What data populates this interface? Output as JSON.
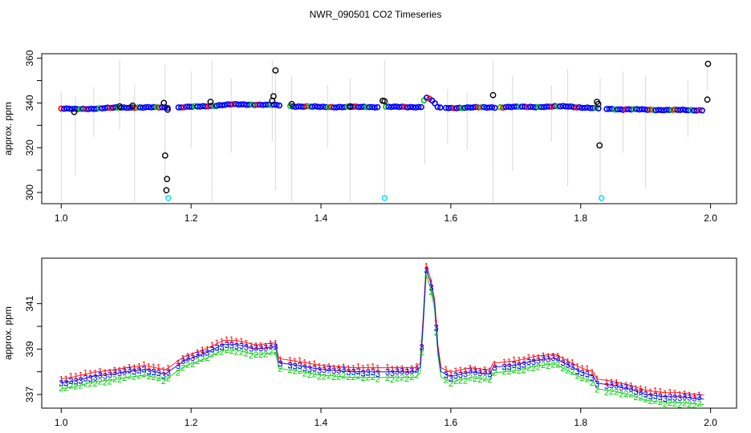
{
  "title": "NWR_090501  CO2 Timeseries",
  "colors": {
    "series_1": "#ff0000",
    "series_2": "#00cd00",
    "series_3": "#0000ff",
    "outlier": "#000000",
    "flag": "#00e5ee",
    "errorbar": "#b4b4b4"
  },
  "chart_data": [
    {
      "type": "scatter",
      "title": "NWR_090501  CO2 Timeseries",
      "ylabel": "approx. ppm",
      "xlabel": "",
      "xlim": [
        0.97,
        2.04
      ],
      "ylim": [
        295,
        362
      ],
      "xticks": [
        1.0,
        1.2,
        1.4,
        1.6,
        1.8,
        2.0
      ],
      "xtick_labels": [
        "1.0",
        "1.2",
        "1.4",
        "1.6",
        "1.8",
        "2.0"
      ],
      "yticks": [
        300,
        320,
        340,
        360
      ],
      "ytick_labels": [
        "300",
        "320",
        "340",
        "360"
      ],
      "grid": false,
      "baseline_trace": {
        "x": [
          1.0,
          1.02,
          1.05,
          1.1,
          1.15,
          1.18,
          1.22,
          1.26,
          1.3,
          1.33,
          1.36,
          1.4,
          1.45,
          1.5,
          1.555,
          1.56,
          1.57,
          1.58,
          1.6,
          1.65,
          1.7,
          1.75,
          1.78,
          1.8,
          1.83,
          1.86,
          1.9,
          1.95,
          1.99
        ],
        "y": [
          337.5,
          337.2,
          337.5,
          338.0,
          338.0,
          338.0,
          338.5,
          339.3,
          339.3,
          339.0,
          338.5,
          338.2,
          338.2,
          338.2,
          338.2,
          342.5,
          341.5,
          338.0,
          337.8,
          338.0,
          338.2,
          338.3,
          338.5,
          338.0,
          337.5,
          337.2,
          337.0,
          336.8,
          336.8
        ]
      },
      "outliers": {
        "x": [
          1.02,
          1.09,
          1.11,
          1.158,
          1.16,
          1.162,
          1.163,
          1.164,
          1.23,
          1.325,
          1.327,
          1.33,
          1.355,
          1.445,
          1.495,
          1.498,
          1.665,
          1.825,
          1.827,
          1.829,
          1.995,
          1.996
        ],
        "y": [
          336,
          338.5,
          338.8,
          340,
          316.5,
          301,
          306,
          337,
          340.5,
          341,
          343,
          354.5,
          339.5,
          338.5,
          341,
          340.8,
          343.5,
          340.5,
          339.5,
          321,
          341.5,
          357.5
        ]
      },
      "flagged": {
        "x": [
          1.165,
          1.498,
          1.832
        ],
        "y": [
          297.5,
          297.5,
          297.5
        ]
      },
      "error_bars": {
        "x": [
          1.0,
          1.022,
          1.05,
          1.09,
          1.113,
          1.16,
          1.2,
          1.232,
          1.262,
          1.325,
          1.33,
          1.355,
          1.41,
          1.445,
          1.498,
          1.56,
          1.595,
          1.625,
          1.665,
          1.695,
          1.755,
          1.78,
          1.83,
          1.865,
          1.9,
          1.965,
          1.995
        ],
        "ylow": [
          296,
          308,
          325,
          328,
          296,
          298,
          320,
          296,
          318,
          323,
          301,
          296,
          320,
          296,
          297,
          313,
          322,
          319,
          296,
          310,
          323,
          303,
          296,
          318,
          302,
          325,
          346
        ],
        "yhigh": [
          345,
          343,
          347,
          359,
          348,
          357,
          354,
          359,
          351,
          359,
          355,
          352,
          348,
          351,
          359,
          342,
          346,
          345,
          359,
          352,
          348,
          355,
          351,
          354,
          352,
          350,
          357
        ]
      }
    },
    {
      "type": "scatter",
      "title": "",
      "ylabel": "approx. ppm",
      "xlabel": "",
      "xlim": [
        0.97,
        2.04
      ],
      "ylim": [
        336.4,
        343.0
      ],
      "xticks": [
        1.0,
        1.2,
        1.4,
        1.6,
        1.8,
        2.0
      ],
      "xtick_labels": [
        "1.0",
        "1.2",
        "1.4",
        "1.6",
        "1.8",
        "2.0"
      ],
      "yticks": [
        337,
        339,
        341
      ],
      "ytick_labels": [
        "337",
        "339",
        "341"
      ],
      "grid": false,
      "series": [
        {
          "marker": "1",
          "color": "#ff0000",
          "offset": 0.18,
          "x": [
            1.0,
            1.02,
            1.05,
            1.08,
            1.1,
            1.13,
            1.16,
            1.165,
            1.19,
            1.22,
            1.25,
            1.27,
            1.3,
            1.33,
            1.335,
            1.36,
            1.4,
            1.45,
            1.48,
            1.485,
            1.51,
            1.545,
            1.553,
            1.558,
            1.562,
            1.568,
            1.575,
            1.58,
            1.585,
            1.6,
            1.63,
            1.66,
            1.665,
            1.7,
            1.73,
            1.76,
            1.8,
            1.82,
            1.825,
            1.85,
            1.88,
            1.9,
            1.93,
            1.95,
            1.99
          ],
          "y": [
            337.5,
            337.6,
            337.8,
            337.9,
            338.0,
            338.1,
            337.9,
            338.0,
            338.5,
            338.8,
            339.2,
            339.2,
            339.0,
            339.1,
            338.4,
            338.3,
            338.1,
            338.0,
            338.0,
            338.0,
            338.0,
            338.0,
            338.2,
            340.5,
            342.5,
            342.0,
            341.0,
            339.0,
            338.0,
            337.8,
            338.0,
            337.9,
            338.2,
            338.3,
            338.5,
            338.6,
            338.0,
            337.8,
            337.5,
            337.4,
            337.2,
            337.0,
            336.9,
            336.9,
            336.8
          ]
        },
        {
          "marker": "2",
          "color": "#00cd00",
          "offset": -0.25,
          "x": [
            1.0,
            1.02,
            1.05,
            1.08,
            1.1,
            1.13,
            1.16,
            1.165,
            1.19,
            1.22,
            1.25,
            1.27,
            1.3,
            1.33,
            1.335,
            1.36,
            1.4,
            1.45,
            1.48,
            1.485,
            1.51,
            1.545,
            1.553,
            1.558,
            1.562,
            1.568,
            1.575,
            1.58,
            1.585,
            1.6,
            1.63,
            1.66,
            1.665,
            1.7,
            1.73,
            1.76,
            1.8,
            1.82,
            1.825,
            1.85,
            1.88,
            1.9,
            1.93,
            1.95,
            1.99
          ],
          "y": [
            337.5,
            337.6,
            337.8,
            337.9,
            338.0,
            338.1,
            337.9,
            338.0,
            338.5,
            338.8,
            339.2,
            339.2,
            339.0,
            339.1,
            338.4,
            338.3,
            338.1,
            338.0,
            338.0,
            338.0,
            338.0,
            338.0,
            338.2,
            340.5,
            342.5,
            342.0,
            341.0,
            339.0,
            338.0,
            337.8,
            338.0,
            337.9,
            338.2,
            338.3,
            338.5,
            338.6,
            338.0,
            337.8,
            337.5,
            337.4,
            337.2,
            337.0,
            336.9,
            336.9,
            336.8
          ]
        },
        {
          "marker": "3",
          "color": "#0000ff",
          "offset": 0.0,
          "x": [
            1.0,
            1.02,
            1.05,
            1.08,
            1.1,
            1.13,
            1.16,
            1.165,
            1.19,
            1.22,
            1.25,
            1.27,
            1.3,
            1.33,
            1.335,
            1.36,
            1.4,
            1.45,
            1.48,
            1.485,
            1.51,
            1.545,
            1.553,
            1.558,
            1.562,
            1.568,
            1.575,
            1.58,
            1.585,
            1.6,
            1.63,
            1.66,
            1.665,
            1.7,
            1.73,
            1.76,
            1.8,
            1.82,
            1.825,
            1.85,
            1.88,
            1.9,
            1.93,
            1.95,
            1.99
          ],
          "y": [
            337.5,
            337.6,
            337.8,
            337.9,
            338.0,
            338.1,
            337.9,
            338.0,
            338.5,
            338.8,
            339.2,
            339.2,
            339.0,
            339.1,
            338.4,
            338.3,
            338.1,
            338.0,
            338.0,
            338.0,
            338.0,
            338.0,
            338.2,
            340.5,
            342.5,
            342.0,
            341.0,
            339.0,
            338.0,
            337.8,
            338.0,
            337.9,
            338.2,
            338.3,
            338.5,
            338.6,
            338.0,
            337.8,
            337.5,
            337.4,
            337.2,
            337.0,
            336.9,
            336.9,
            336.8
          ]
        }
      ]
    }
  ]
}
